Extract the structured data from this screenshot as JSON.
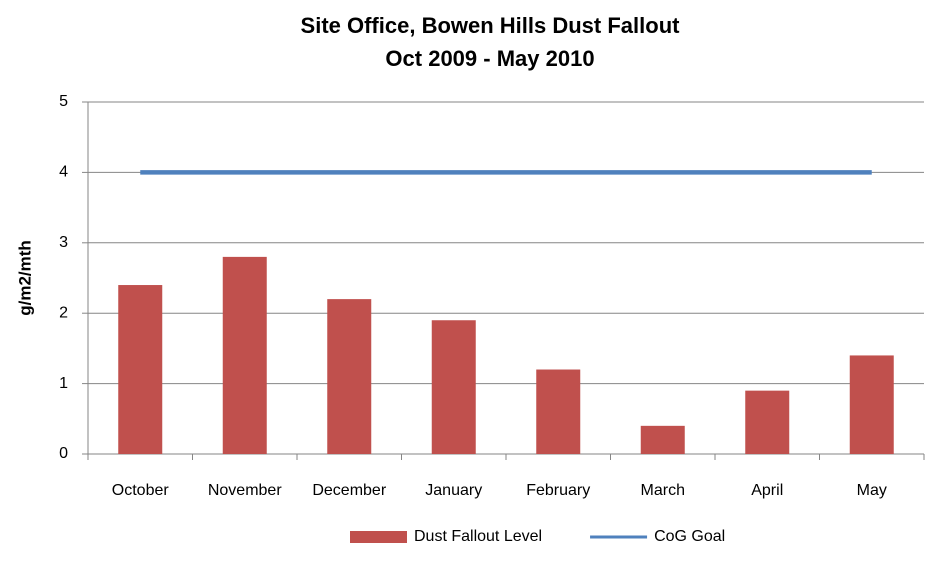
{
  "chart_data": {
    "type": "bar",
    "title": "Site Office, Bowen Hills Dust Fallout",
    "subtitle": "Oct 2009 - May 2010",
    "y_label": "g/m2/mth",
    "categories": [
      "October",
      "November",
      "December",
      "January",
      "February",
      "March",
      "April",
      "May"
    ],
    "series": [
      {
        "name": "Dust Fallout Level",
        "type": "bar",
        "color": "#c0504d",
        "values": [
          2.4,
          2.8,
          2.2,
          1.9,
          1.2,
          0.4,
          0.9,
          1.4
        ]
      },
      {
        "name": "CoG Goal",
        "type": "line",
        "color": "#4f81bd",
        "values": [
          4,
          4,
          4,
          4,
          4,
          4,
          4,
          4
        ]
      }
    ],
    "ylim": [
      0,
      5
    ],
    "yticks": [
      0,
      1,
      2,
      3,
      4,
      5
    ],
    "grid": true,
    "legend": "bottom"
  }
}
